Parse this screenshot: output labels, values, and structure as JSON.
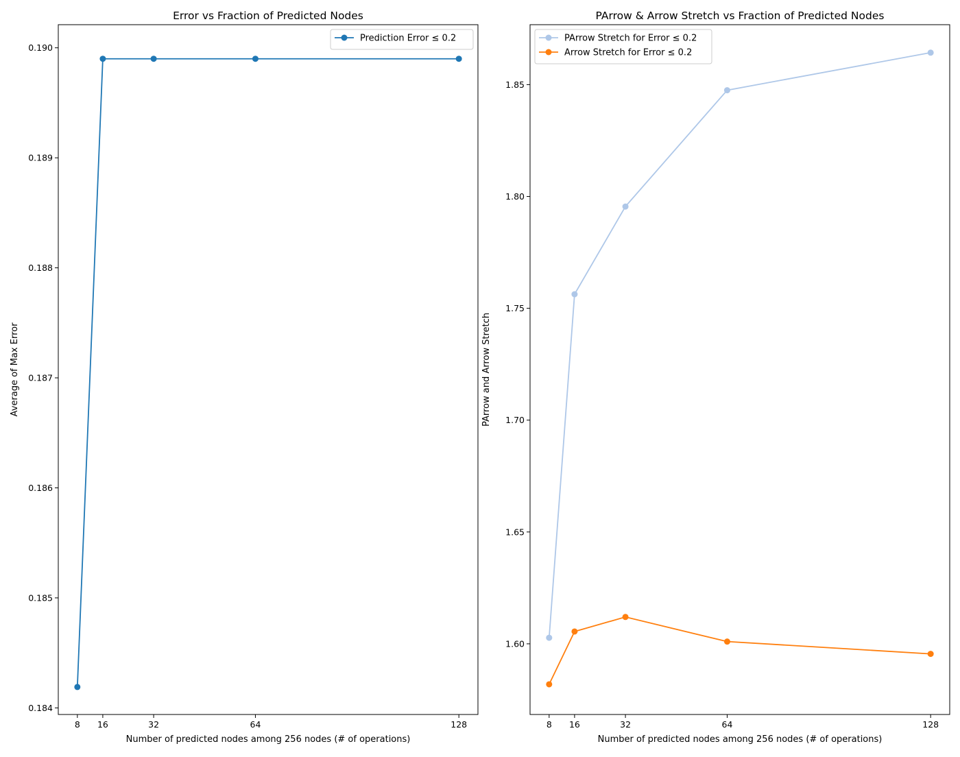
{
  "chart_data": [
    {
      "type": "line",
      "title": "Error vs Fraction of Predicted Nodes",
      "xlabel": "Number of predicted nodes among 256 nodes (# of operations)",
      "ylabel": "Average of Max Error",
      "x": [
        8,
        16,
        32,
        64,
        128
      ],
      "xticks": [
        "8",
        "16",
        "32",
        "64",
        "128"
      ],
      "yticks": [
        "0.184",
        "0.185",
        "0.186",
        "0.187",
        "0.188",
        "0.189",
        "0.190"
      ],
      "ylim": [
        0.18394,
        0.19021
      ],
      "xlim": [
        2,
        134
      ],
      "legend_position": "top-right",
      "grid": false,
      "series": [
        {
          "name": "Prediction Error ≤ 0.2",
          "color": "#1f77b4",
          "values": [
            0.18419,
            0.1899,
            0.1899,
            0.1899,
            0.1899
          ]
        }
      ]
    },
    {
      "type": "line",
      "title": "PArrow & Arrow Stretch vs Fraction of Predicted Nodes",
      "xlabel": "Number of predicted nodes among 256 nodes (# of operations)",
      "ylabel": "PArrow and Arrow Stretch",
      "x": [
        8,
        16,
        32,
        64,
        128
      ],
      "xticks": [
        "8",
        "16",
        "32",
        "64",
        "128"
      ],
      "yticks": [
        "1.60",
        "1.65",
        "1.70",
        "1.75",
        "1.80",
        "1.85"
      ],
      "ylim": [
        1.5684,
        1.8768
      ],
      "xlim": [
        2,
        134
      ],
      "legend_position": "top-left",
      "grid": false,
      "series": [
        {
          "name": "PArrow Stretch for Error ≤ 0.2",
          "color": "#aec7e8",
          "values": [
            1.6027,
            1.7563,
            1.7955,
            1.8475,
            1.8643
          ]
        },
        {
          "name": "Arrow Stretch for Error ≤ 0.2",
          "color": "#ff7f0e",
          "values": [
            1.5819,
            1.6055,
            1.612,
            1.601,
            1.5955
          ]
        }
      ]
    }
  ]
}
